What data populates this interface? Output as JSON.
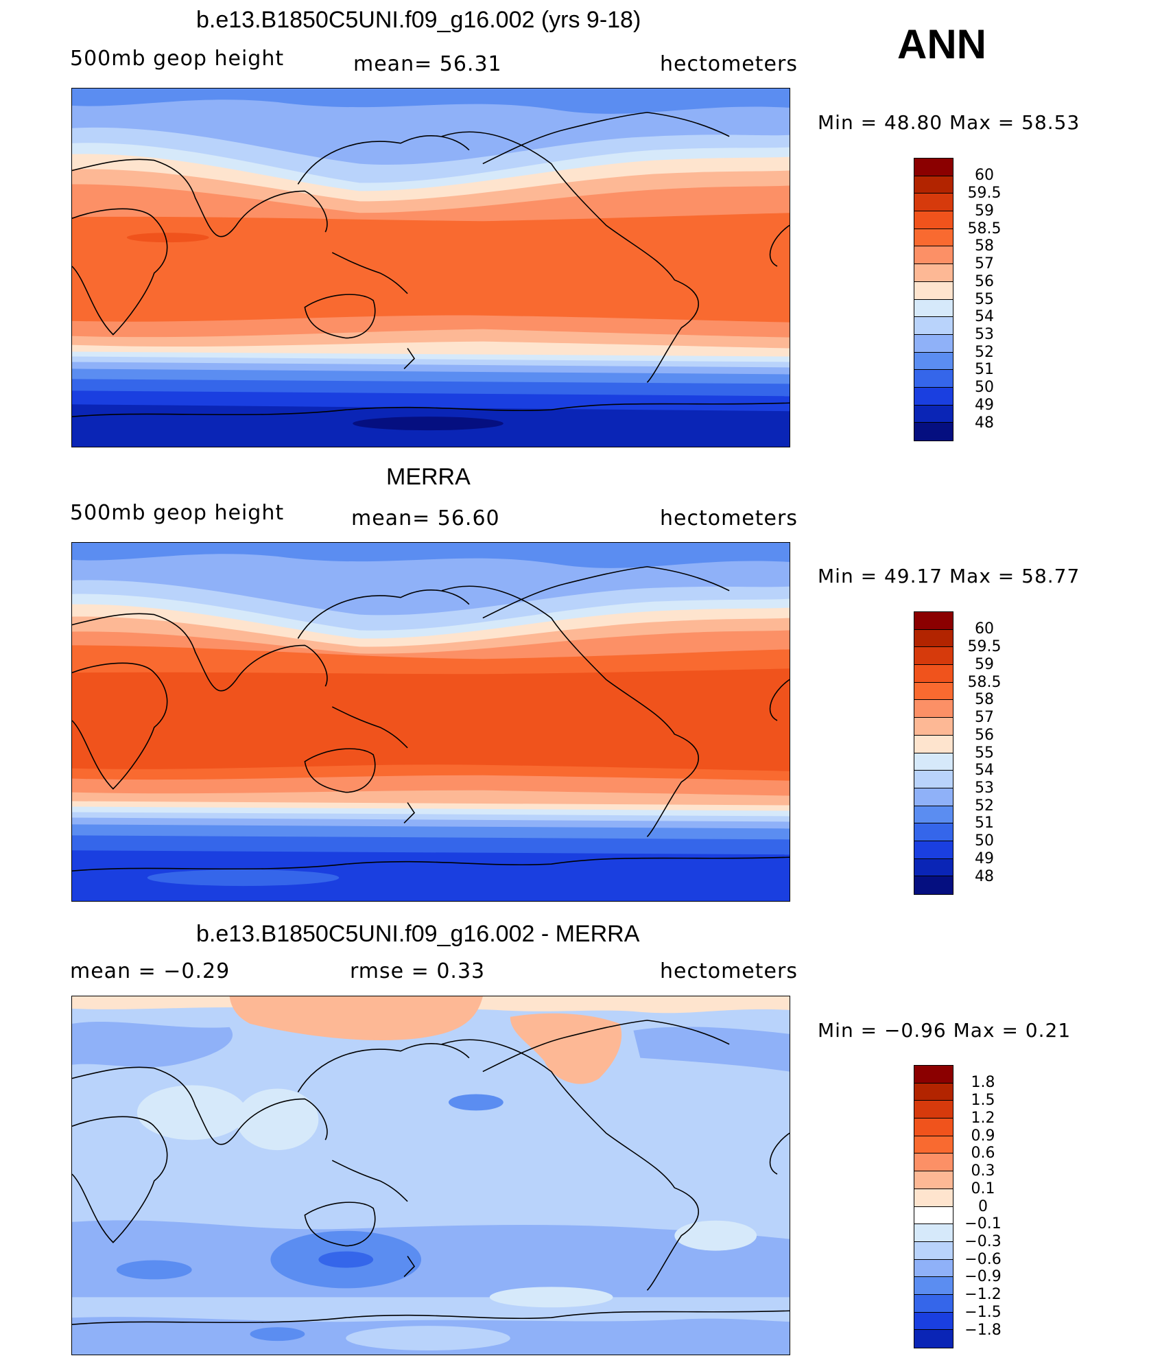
{
  "season": "ANN",
  "panels": [
    {
      "id": "model",
      "title": "b.e13.B1850C5UNI.f09_g16.002 (yrs 9-18)",
      "left_label": "500mb  geop  height",
      "center_label": "mean=   56.31",
      "right_label": "hectometers",
      "minmax": "Min  =    48.80  Max  =    58.53",
      "levels": [
        "60",
        "59.5",
        "59",
        "58.5",
        "58",
        "57",
        "56",
        "55",
        "54",
        "53",
        "52",
        "51",
        "50",
        "49",
        "48"
      ]
    },
    {
      "id": "obs",
      "title": "MERRA",
      "left_label": "500mb  geop  height",
      "center_label": "mean=   56.60",
      "right_label": "hectometers",
      "minmax": "Min  =    49.17  Max  =    58.77",
      "levels": [
        "60",
        "59.5",
        "59",
        "58.5",
        "58",
        "57",
        "56",
        "55",
        "54",
        "53",
        "52",
        "51",
        "50",
        "49",
        "48"
      ]
    },
    {
      "id": "diff",
      "title": "b.e13.B1850C5UNI.f09_g16.002 - MERRA",
      "left_label": "mean  =    −0.29",
      "center_label": "rmse  =     0.33",
      "right_label": "hectometers",
      "minmax": "Min  =    −0.96  Max  =     0.21",
      "levels": [
        "1.8",
        "1.5",
        "1.2",
        "0.9",
        "0.6",
        "0.3",
        "0.1",
        "0",
        "−0.1",
        "−0.3",
        "−0.6",
        "−0.9",
        "−1.2",
        "−1.5",
        "−1.8"
      ]
    }
  ],
  "colors": {
    "scale": [
      "#8b0000",
      "#b22400",
      "#d63a0c",
      "#f0531c",
      "#f96a30",
      "#fc9066",
      "#fdb895",
      "#fee4ce",
      "#ffffff",
      "#d6e9fa",
      "#b9d3fb",
      "#8fb1f8",
      "#5b8df1",
      "#3566ea",
      "#1a3fe0",
      "#0a25b6",
      "#050f80"
    ]
  },
  "chart_data": [
    {
      "type": "heatmap",
      "title": "b.e13.B1850C5UNI.f09_g16.002 (yrs 9-18)",
      "variable": "500mb geop height",
      "units": "hectometers",
      "mean": 56.31,
      "min": 48.8,
      "max": 58.53,
      "contour_levels": [
        48,
        49,
        50,
        51,
        52,
        53,
        54,
        55,
        56,
        57,
        58,
        58.5,
        59,
        59.5,
        60
      ]
    },
    {
      "type": "heatmap",
      "title": "MERRA",
      "variable": "500mb geop height",
      "units": "hectometers",
      "mean": 56.6,
      "min": 49.17,
      "max": 58.77,
      "contour_levels": [
        48,
        49,
        50,
        51,
        52,
        53,
        54,
        55,
        56,
        57,
        58,
        58.5,
        59,
        59.5,
        60
      ]
    },
    {
      "type": "heatmap",
      "title": "b.e13.B1850C5UNI.f09_g16.002 - MERRA",
      "units": "hectometers",
      "mean": -0.29,
      "rmse": 0.33,
      "min": -0.96,
      "max": 0.21,
      "contour_levels": [
        -1.8,
        -1.5,
        -1.2,
        -0.9,
        -0.6,
        -0.3,
        -0.1,
        0,
        0.1,
        0.3,
        0.6,
        0.9,
        1.2,
        1.5,
        1.8
      ]
    }
  ]
}
